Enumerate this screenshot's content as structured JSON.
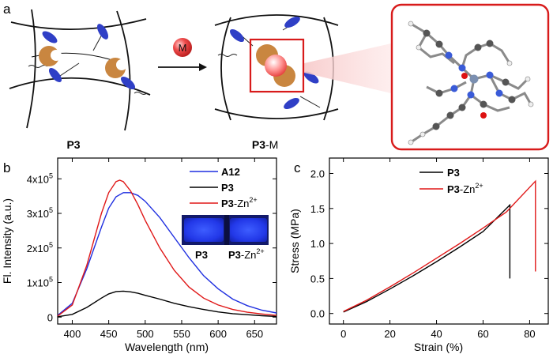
{
  "panel_labels": {
    "a": "a",
    "b": "b",
    "c": "c"
  },
  "scheme": {
    "metal_symbol": "M",
    "left_caption_bold": "P3",
    "right_caption_bold": "P3",
    "right_caption_suffix": "-M",
    "colors": {
      "crescent": "#c98640",
      "ellipse": "#2f3fc6",
      "metal": "#e53935",
      "highlight_box": "#d81b1b"
    }
  },
  "chart_data": [
    {
      "id": "b",
      "type": "line",
      "title": "",
      "xlabel": "Wavelength (nm)",
      "ylabel": "Fl. Intensity (a.u.)",
      "xlim": [
        380,
        680
      ],
      "ylim": [
        -20000,
        460000
      ],
      "xticks": [
        400,
        450,
        500,
        550,
        600,
        650
      ],
      "xtick_labels": [
        "400",
        "450",
        "500",
        "550",
        "600",
        "650"
      ],
      "yticks": [
        0,
        100000,
        200000,
        300000,
        400000
      ],
      "ytick_labels": [
        {
          "base": "0",
          "exp": ""
        },
        {
          "base": "1x10",
          "exp": "5"
        },
        {
          "base": "2x10",
          "exp": "5"
        },
        {
          "base": "3x10",
          "exp": "5"
        },
        {
          "base": "4x10",
          "exp": "5"
        }
      ],
      "legend": {
        "placement": "top-right"
      },
      "series": [
        {
          "name": "A12",
          "name_bold": "A12",
          "name_suffix": "",
          "name_sup": "",
          "color": "#1f2fe0",
          "x": [
            380,
            400,
            420,
            440,
            450,
            460,
            470,
            480,
            490,
            500,
            520,
            540,
            560,
            580,
            600,
            620,
            640,
            660,
            680
          ],
          "y": [
            5000,
            40000,
            140000,
            260000,
            315000,
            348000,
            360000,
            360000,
            352000,
            335000,
            288000,
            230000,
            172000,
            120000,
            82000,
            52000,
            33000,
            20000,
            12000
          ]
        },
        {
          "name": "P3",
          "name_bold": "P3",
          "name_suffix": "",
          "name_sup": "",
          "color": "#000000",
          "x": [
            380,
            400,
            420,
            440,
            450,
            460,
            470,
            480,
            490,
            500,
            520,
            540,
            560,
            580,
            600,
            620,
            640,
            660,
            680
          ],
          "y": [
            1000,
            8000,
            28000,
            55000,
            67000,
            74000,
            75000,
            73000,
            69000,
            63000,
            52000,
            40000,
            30000,
            22000,
            15000,
            10000,
            7000,
            4000,
            2000
          ]
        },
        {
          "name": "P3-Zn2+",
          "name_bold": "P3",
          "name_suffix": "-Zn",
          "name_sup": "2+",
          "color": "#e01818",
          "x": [
            380,
            400,
            420,
            440,
            450,
            460,
            465,
            470,
            480,
            490,
            500,
            520,
            540,
            560,
            580,
            600,
            620,
            640,
            660,
            680
          ],
          "y": [
            3000,
            35000,
            150000,
            300000,
            360000,
            392000,
            396000,
            392000,
            365000,
            325000,
            280000,
            200000,
            135000,
            87000,
            55000,
            35000,
            22000,
            14000,
            9000,
            5000
          ]
        }
      ],
      "inset": {
        "label_left_bold": "P3",
        "label_right_bold": "P3",
        "label_right_suffix": "-Zn",
        "label_right_sup": "2+"
      }
    },
    {
      "id": "c",
      "type": "line",
      "title": "",
      "xlabel": "Strain (%)",
      "ylabel": "Stress (MPa)",
      "xlim": [
        -6,
        88
      ],
      "ylim": [
        -0.15,
        2.22
      ],
      "xticks": [
        0,
        20,
        40,
        60,
        80
      ],
      "xtick_labels": [
        "0",
        "20",
        "40",
        "60",
        "80"
      ],
      "yticks": [
        0,
        0.5,
        1.0,
        1.5,
        2.0
      ],
      "ytick_labels": [
        "0.0",
        "0.5",
        "1.0",
        "1.5",
        "2.0"
      ],
      "legend": {
        "placement": "top-center"
      },
      "series": [
        {
          "name": "P3",
          "name_bold": "P3",
          "name_suffix": "",
          "name_sup": "",
          "color": "#000000",
          "x": [
            0,
            10,
            20,
            30,
            40,
            50,
            60,
            71.5,
            71.5
          ],
          "y": [
            0.02,
            0.17,
            0.35,
            0.54,
            0.74,
            0.95,
            1.17,
            1.55,
            0.5
          ]
        },
        {
          "name": "P3-Zn2+",
          "name_bold": "P3",
          "name_suffix": "-Zn",
          "name_sup": "2+",
          "color": "#e01818",
          "x": [
            0,
            10,
            20,
            30,
            40,
            50,
            60,
            70,
            82.5,
            82.5
          ],
          "y": [
            0.03,
            0.19,
            0.38,
            0.58,
            0.79,
            1.0,
            1.22,
            1.45,
            1.89,
            0.6
          ]
        }
      ]
    }
  ]
}
